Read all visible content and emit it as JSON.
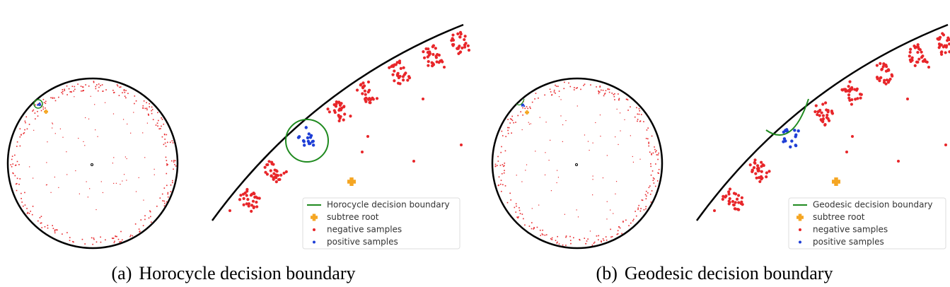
{
  "panels": [
    {
      "caption_label": "(a)",
      "caption": "Horocycle decision boundary",
      "legend": [
        "Horocycle decision boundary",
        "subtree root",
        "negative samples",
        "positive samples"
      ]
    },
    {
      "caption_label": "(b)",
      "caption": "Geodesic decision boundary",
      "legend": [
        "Geodesic decision boundary",
        "subtree root",
        "negative samples",
        "positive samples"
      ]
    }
  ]
}
